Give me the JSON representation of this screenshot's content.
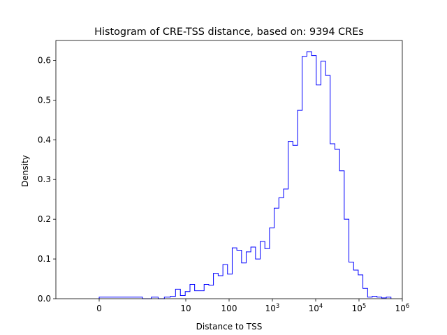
{
  "chart_data": {
    "type": "histogram",
    "title": "Histogram of CRE-TSS distance, based on: 9394 CREs",
    "xlabel": "Distance to TSS",
    "ylabel": "Density",
    "xscale": "symlog",
    "xlim": [
      -1,
      1000000
    ],
    "ylim": [
      0,
      0.65
    ],
    "x_ticks": [
      {
        "value": 0,
        "label": "0"
      },
      {
        "value": 10,
        "label": "10"
      },
      {
        "value": 100,
        "label": "100"
      },
      {
        "value": 1000,
        "label": "10",
        "exp": "3"
      },
      {
        "value": 10000,
        "label": "10",
        "exp": "4"
      },
      {
        "value": 100000,
        "label": "10",
        "exp": "5"
      },
      {
        "value": 1000000,
        "label": "10",
        "exp": "6"
      }
    ],
    "y_ticks": [
      {
        "value": 0.0,
        "label": "0.0"
      },
      {
        "value": 0.1,
        "label": "0.1"
      },
      {
        "value": 0.2,
        "label": "0.2"
      },
      {
        "value": 0.3,
        "label": "0.3"
      },
      {
        "value": 0.4,
        "label": "0.4"
      },
      {
        "value": 0.5,
        "label": "0.5"
      },
      {
        "value": 0.6,
        "label": "0.6"
      }
    ],
    "bins": [
      [
        0,
        1.0,
        0.004
      ],
      [
        1.0,
        1.6,
        0.0
      ],
      [
        1.6,
        2.3,
        0.004
      ],
      [
        2.3,
        3.2,
        0.0
      ],
      [
        3.2,
        4.4,
        0.004
      ],
      [
        4.4,
        5.8,
        0.006
      ],
      [
        5.8,
        7.5,
        0.024
      ],
      [
        7.5,
        9.7,
        0.008
      ],
      [
        9.7,
        12.5,
        0.018
      ],
      [
        12.5,
        16,
        0.036
      ],
      [
        16,
        20.6,
        0.02
      ],
      [
        20.6,
        26.5,
        0.02
      ],
      [
        26.5,
        34,
        0.036
      ],
      [
        34,
        43.5,
        0.034
      ],
      [
        43.5,
        56,
        0.064
      ],
      [
        56,
        72,
        0.058
      ],
      [
        72,
        92,
        0.086
      ],
      [
        92,
        118,
        0.062
      ],
      [
        118,
        151,
        0.128
      ],
      [
        151,
        194,
        0.122
      ],
      [
        194,
        248,
        0.09
      ],
      [
        248,
        318,
        0.118
      ],
      [
        318,
        408,
        0.13
      ],
      [
        408,
        523,
        0.1
      ],
      [
        523,
        670,
        0.144
      ],
      [
        670,
        858,
        0.126
      ],
      [
        858,
        1100,
        0.178
      ],
      [
        1100,
        1410,
        0.228
      ],
      [
        1410,
        1810,
        0.254
      ],
      [
        1810,
        2320,
        0.276
      ],
      [
        2320,
        2970,
        0.396
      ],
      [
        2970,
        3810,
        0.386
      ],
      [
        3810,
        4880,
        0.474
      ],
      [
        4880,
        6260,
        0.61
      ],
      [
        6260,
        8020,
        0.622
      ],
      [
        8020,
        10300,
        0.612
      ],
      [
        10300,
        13200,
        0.538
      ],
      [
        13200,
        16900,
        0.598
      ],
      [
        16900,
        21600,
        0.562
      ],
      [
        21600,
        27800,
        0.39
      ],
      [
        27800,
        35600,
        0.376
      ],
      [
        35600,
        45600,
        0.322
      ],
      [
        45600,
        58500,
        0.2
      ],
      [
        58500,
        75000,
        0.092
      ],
      [
        75000,
        96000,
        0.072
      ],
      [
        96000,
        123000,
        0.06
      ],
      [
        123000,
        158000,
        0.026
      ],
      [
        158000,
        202000,
        0.004
      ],
      [
        202000,
        260000,
        0.006
      ],
      [
        260000,
        333000,
        0.004
      ],
      [
        333000,
        427000,
        0.002
      ],
      [
        427000,
        547000,
        0.004
      ]
    ],
    "grid": false,
    "legend": "none",
    "color": "#0000ff"
  }
}
